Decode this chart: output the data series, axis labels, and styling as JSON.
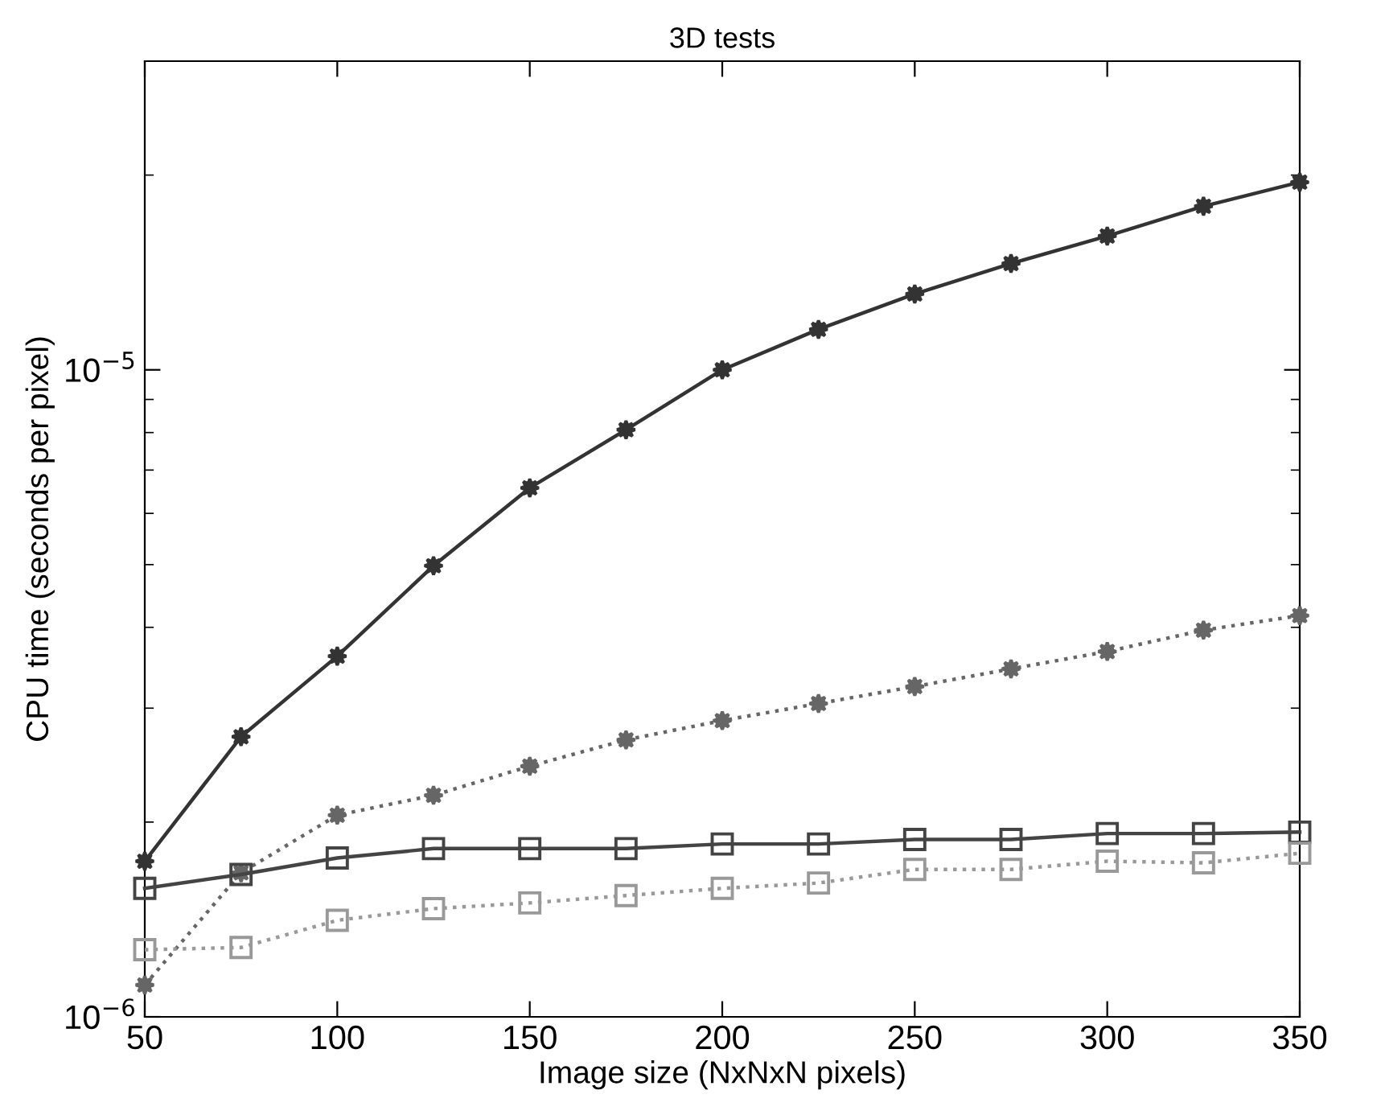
{
  "chart_data": {
    "type": "line",
    "title": "3D tests",
    "xlabel": "Image size (NxNxN pixels)",
    "ylabel": "CPU time (seconds per pixel)",
    "x": [
      50,
      75,
      100,
      125,
      150,
      175,
      200,
      225,
      250,
      275,
      300,
      325,
      350
    ],
    "series": [
      {
        "color": "#333333",
        "marker": "star",
        "line_style": "solid",
        "values": [
          1.74e-06,
          2.71e-06,
          3.61e-06,
          4.98e-06,
          6.57e-06,
          8.08e-06,
          1e-05,
          1.155e-05,
          1.31e-05,
          1.46e-05,
          1.61e-05,
          1.79e-05,
          1.95e-05
        ]
      },
      {
        "color": "#666666",
        "marker": "star",
        "line_style": "dotted",
        "values": [
          1.12e-06,
          1.67e-06,
          2.05e-06,
          2.2e-06,
          2.44e-06,
          2.68e-06,
          2.87e-06,
          3.05e-06,
          3.24e-06,
          3.45e-06,
          3.67e-06,
          3.96e-06,
          4.17e-06
        ]
      },
      {
        "color": "#444444",
        "marker": "square",
        "line_style": "solid",
        "values": [
          1.58e-06,
          1.66e-06,
          1.76e-06,
          1.82e-06,
          1.82e-06,
          1.82e-06,
          1.85e-06,
          1.85e-06,
          1.88e-06,
          1.88e-06,
          1.92e-06,
          1.92e-06,
          1.93e-06
        ]
      },
      {
        "color": "#999999",
        "marker": "square",
        "line_style": "dotted",
        "values": [
          1.27e-06,
          1.28e-06,
          1.41e-06,
          1.47e-06,
          1.5e-06,
          1.54e-06,
          1.58e-06,
          1.61e-06,
          1.69e-06,
          1.69e-06,
          1.74e-06,
          1.73e-06,
          1.79e-06
        ]
      }
    ],
    "log": "y",
    "xlim": [
      50,
      350
    ],
    "ylim": [
      1e-06,
      3e-05
    ],
    "xticks": [
      50,
      100,
      150,
      200,
      250,
      300,
      350
    ],
    "yticks": [
      {
        "value": 1e-06,
        "label": "10$^{−6}$"
      },
      {
        "value": 1e-05,
        "label": "10$^{−5}$"
      }
    ],
    "grid": false,
    "legend": false
  }
}
